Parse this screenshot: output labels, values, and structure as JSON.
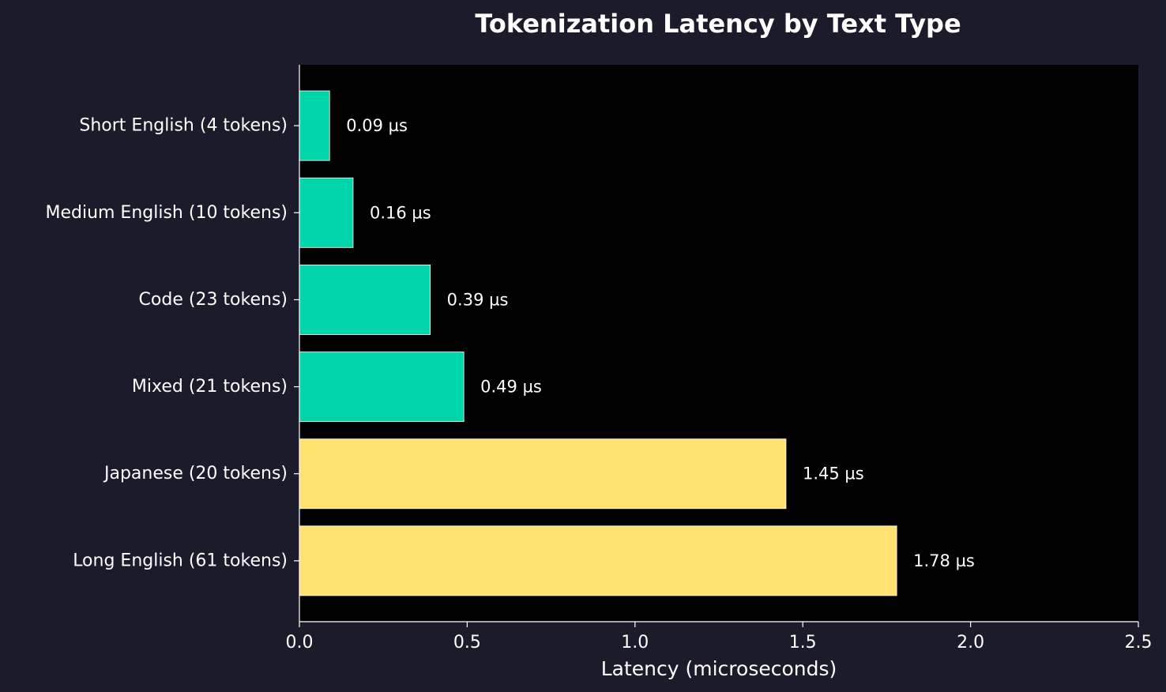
{
  "chart_data": {
    "type": "bar",
    "orientation": "horizontal",
    "title": "Tokenization Latency by Text Type",
    "xlabel": "Latency (microseconds)",
    "ylabel": "",
    "xlim": [
      0,
      2.5
    ],
    "xticks": [
      {
        "value": 0.0,
        "label": "0.0"
      },
      {
        "value": 0.5,
        "label": "0.5"
      },
      {
        "value": 1.0,
        "label": "1.0"
      },
      {
        "value": 1.5,
        "label": "1.5"
      },
      {
        "value": 2.0,
        "label": "2.0"
      },
      {
        "value": 2.5,
        "label": "2.5"
      }
    ],
    "categories": [
      "Short English (4 tokens)",
      "Medium English (10 tokens)",
      "Code (23 tokens)",
      "Mixed (21 tokens)",
      "Japanese (20 tokens)",
      "Long English (61 tokens)"
    ],
    "values": [
      0.09,
      0.16,
      0.39,
      0.49,
      1.45,
      1.78
    ],
    "value_labels": [
      "0.09 µs",
      "0.16 µs",
      "0.39 µs",
      "0.49 µs",
      "1.45 µs",
      "1.78 µs"
    ],
    "bar_colors": [
      "#00d4aa",
      "#00d4aa",
      "#00d4aa",
      "#00d4aa",
      "#ffe270",
      "#ffe270"
    ],
    "grid": false,
    "colors": {
      "figure_background": "#1b1b2b",
      "plot_background": "#000000",
      "text": "#ffffff",
      "axis": "#ffffff"
    }
  }
}
